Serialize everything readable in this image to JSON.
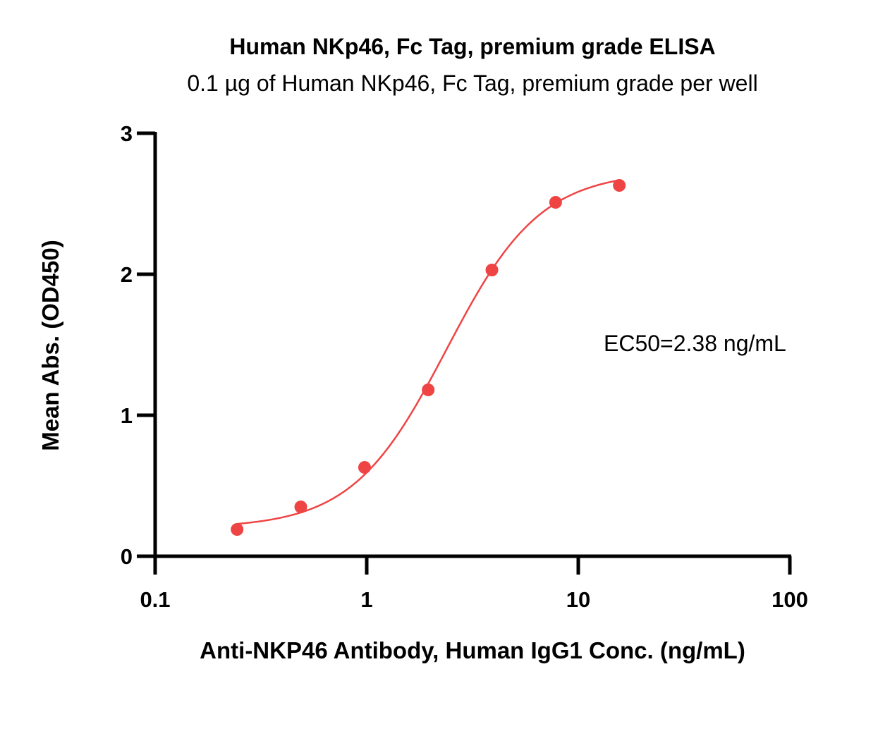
{
  "chart_data": {
    "type": "scatter",
    "title": "Human NKp46, Fc Tag, premium grade ELISA",
    "subtitle": "0.1 µg of Human NKp46, Fc Tag, premium grade per well",
    "xlabel": "Anti-NKP46 Antibody, Human IgG1 Conc. (ng/mL)",
    "ylabel": "Mean Abs. (OD450)",
    "x_scale": "log",
    "xlim": [
      0.1,
      100
    ],
    "ylim": [
      0,
      3
    ],
    "x_ticks": [
      "0.1",
      "1",
      "10",
      "100"
    ],
    "y_ticks": [
      "0",
      "1",
      "2",
      "3"
    ],
    "annotation": "EC50=2.38 ng/mL",
    "series": [
      {
        "color": "#ef4444",
        "x": [
          0.244,
          0.488,
          0.977,
          1.953,
          3.906,
          7.813,
          15.625
        ],
        "y": [
          0.19,
          0.35,
          0.63,
          1.18,
          2.03,
          2.51,
          2.63
        ],
        "fit": {
          "bottom": 0.2,
          "top": 2.73,
          "ec50": 2.38,
          "hill": 1.95
        }
      }
    ],
    "grid": false,
    "legend": "none"
  }
}
